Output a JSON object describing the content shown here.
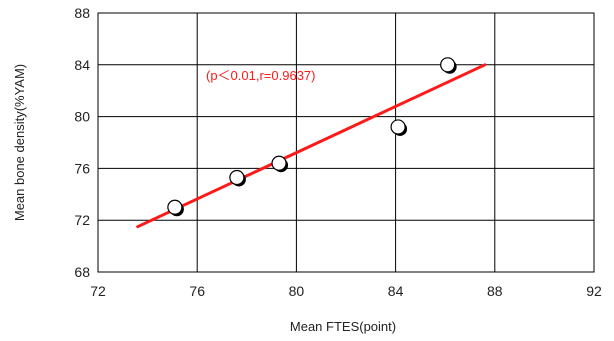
{
  "chart_data": {
    "type": "scatter",
    "title": "",
    "xlabel": "Mean FTES(point)",
    "ylabel": "Mean bone density(%YAM)",
    "xlim": [
      72,
      92
    ],
    "ylim": [
      68,
      88
    ],
    "xticks": [
      "72",
      "76",
      "80",
      "84",
      "88",
      "92"
    ],
    "yticks": [
      "68",
      "72",
      "76",
      "80",
      "84",
      "88"
    ],
    "grid": true,
    "points": [
      {
        "x": 75.1,
        "y": 73.0
      },
      {
        "x": 77.6,
        "y": 75.3
      },
      {
        "x": 79.3,
        "y": 76.4
      },
      {
        "x": 84.1,
        "y": 79.2
      },
      {
        "x": 86.1,
        "y": 84.0
      }
    ],
    "trendline": {
      "x": [
        73.6,
        87.6
      ],
      "y": [
        71.5,
        84.0
      ]
    },
    "annotation": "(p＜0.01,r=0.9637)",
    "colors": {
      "trendline": "#ff1a1a",
      "annotation": "#ff1a1a",
      "grid": "#000000",
      "marker_fill": "#ffffff",
      "marker_edge": "#000000"
    }
  }
}
